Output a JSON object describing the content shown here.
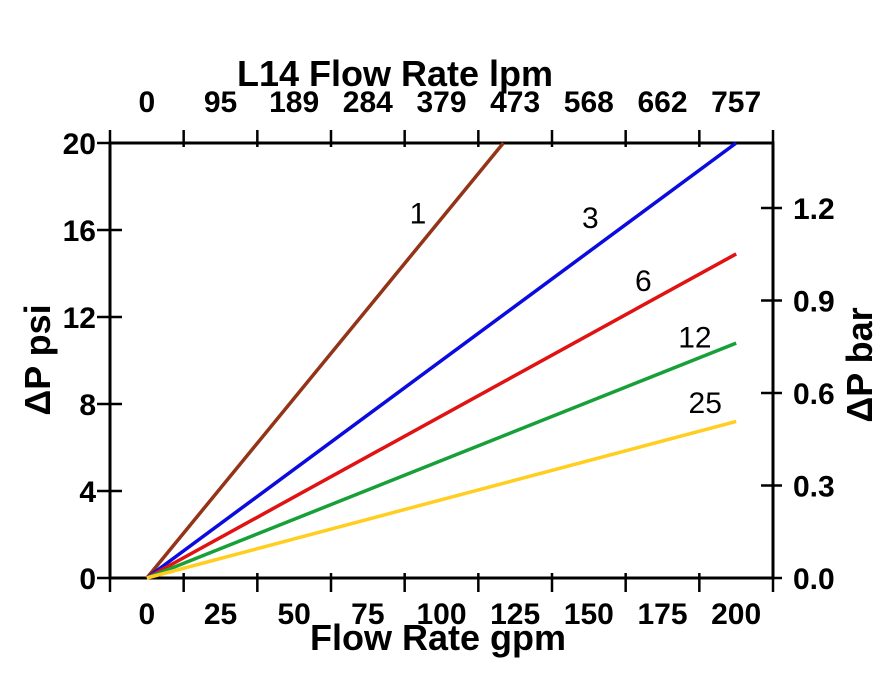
{
  "chart_data": {
    "type": "line",
    "grid": false,
    "background_color": "#ffffff",
    "axis_color": "#000000",
    "top_axis": {
      "title": "L14 Flow Rate lpm",
      "tick_labels": [
        "0",
        "95",
        "189",
        "284",
        "379",
        "473",
        "568",
        "662",
        "757"
      ]
    },
    "bottom_axis": {
      "title": "Flow Rate gpm",
      "tick_labels": [
        "0",
        "25",
        "50",
        "75",
        "100",
        "125",
        "150",
        "175",
        "200"
      ],
      "range_gpm": [
        0,
        200
      ]
    },
    "left_axis": {
      "title": "ΔP psi",
      "tick_labels": [
        "0",
        "4",
        "8",
        "12",
        "16",
        "20"
      ],
      "range_psi": [
        0,
        20
      ]
    },
    "right_axis": {
      "title": "ΔP bar",
      "tick_labels": [
        "0.0",
        "0.3",
        "0.6",
        "0.9",
        "1.2"
      ]
    },
    "series": [
      {
        "name": "1",
        "label": "1",
        "color": "#933418",
        "points_gpm_psi": [
          [
            0,
            0
          ],
          [
            121,
            20
          ]
        ],
        "psi_per_gpm": 0.165,
        "label_pos_gpm_psi": [
          92,
          16.8
        ],
        "clipped_at_top": true
      },
      {
        "name": "3",
        "label": "3",
        "color": "#0B0BE0",
        "points_gpm_psi": [
          [
            0,
            0
          ],
          [
            200,
            20
          ]
        ],
        "psi_per_gpm": 0.1,
        "label_pos_gpm_psi": [
          150.5,
          16.6
        ],
        "clipped_at_top": false
      },
      {
        "name": "6",
        "label": "6",
        "color": "#E01212",
        "points_gpm_psi": [
          [
            0,
            0
          ],
          [
            200,
            14.9
          ]
        ],
        "psi_per_gpm": 0.075,
        "label_pos_gpm_psi": [
          168.5,
          13.7
        ],
        "clipped_at_top": false
      },
      {
        "name": "12",
        "label": "12",
        "color": "#17A038",
        "points_gpm_psi": [
          [
            0,
            0
          ],
          [
            200,
            10.8
          ]
        ],
        "psi_per_gpm": 0.054,
        "label_pos_gpm_psi": [
          186,
          11.1
        ],
        "clipped_at_top": false
      },
      {
        "name": "25",
        "label": "25",
        "color": "#FFCE1F",
        "points_gpm_psi": [
          [
            0,
            0
          ],
          [
            200,
            7.2
          ]
        ],
        "psi_per_gpm": 0.036,
        "label_pos_gpm_psi": [
          189.5,
          8.1
        ],
        "clipped_at_top": false
      }
    ]
  }
}
